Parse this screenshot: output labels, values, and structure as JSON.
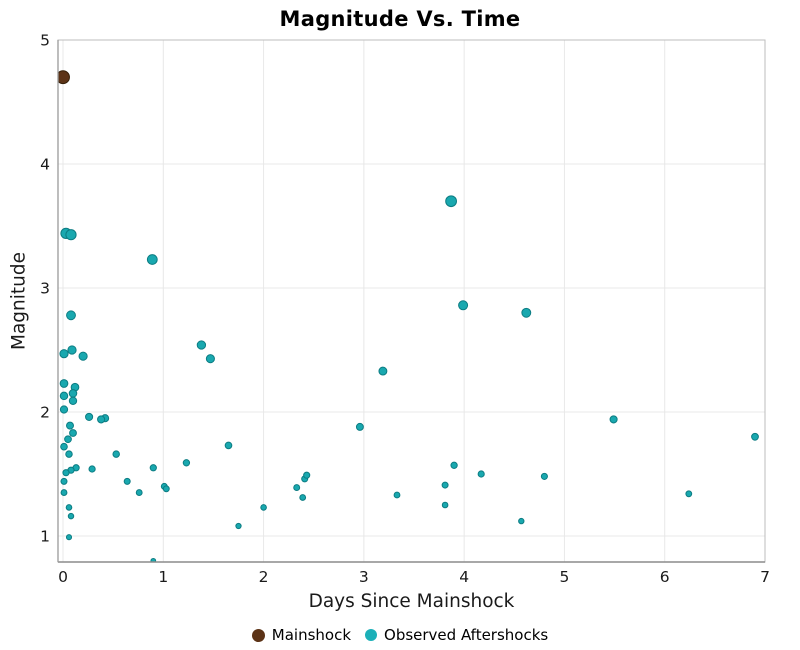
{
  "title": "Magnitude Vs. Time",
  "x_axis_label": "Days Since Mainshock",
  "y_axis_label": "Magnitude",
  "legend": {
    "items": [
      {
        "label": "Mainshock",
        "color": "#5C3317"
      },
      {
        "label": "Observed Aftershocks",
        "color": "#1CB0B8"
      }
    ]
  },
  "colors": {
    "mainshock_fill": "#5C3317",
    "mainshock_edge": "#35200A",
    "aftershock_fill": "#19A8AF",
    "aftershock_edge": "#0C7C82",
    "gridline": "#E8E8E8",
    "axis_border": "#BDBDBD",
    "axis_spine": "#8C8C8C",
    "text": "#1A1A1A"
  },
  "chart_data": {
    "type": "scatter",
    "title": "Magnitude Vs. Time",
    "xlabel": "Days Since Mainshock",
    "ylabel": "Magnitude",
    "x_range": [
      -0.05,
      7.0
    ],
    "y_range": [
      0.79,
      5.0
    ],
    "x_ticks": [
      0,
      1,
      2,
      3,
      4,
      5,
      6,
      7
    ],
    "y_ticks": [
      1,
      2,
      3,
      4,
      5
    ],
    "grid": true,
    "legend_position": "bottom",
    "marker_note": "marker size scales with magnitude",
    "series": [
      {
        "name": "Mainshock",
        "color": "#5C3317",
        "edge_color": "#35200A",
        "points": [
          [
            0.0,
            4.7
          ]
        ]
      },
      {
        "name": "Observed Aftershocks",
        "color": "#19A8AF",
        "edge_color": "#0C7C82",
        "points": [
          [
            0.03,
            3.44
          ],
          [
            0.08,
            3.43
          ],
          [
            0.89,
            3.23
          ],
          [
            0.08,
            2.78
          ],
          [
            0.01,
            2.47
          ],
          [
            0.09,
            2.5
          ],
          [
            0.2,
            2.45
          ],
          [
            1.38,
            2.54
          ],
          [
            1.47,
            2.43
          ],
          [
            3.19,
            2.33
          ],
          [
            0.01,
            2.23
          ],
          [
            0.12,
            2.2
          ],
          [
            0.1,
            2.15
          ],
          [
            0.01,
            2.13
          ],
          [
            0.1,
            2.09
          ],
          [
            0.01,
            2.02
          ],
          [
            0.26,
            1.96
          ],
          [
            0.42,
            1.95
          ],
          [
            0.38,
            1.94
          ],
          [
            0.07,
            1.89
          ],
          [
            0.1,
            1.83
          ],
          [
            0.05,
            1.78
          ],
          [
            0.01,
            1.72
          ],
          [
            0.06,
            1.66
          ],
          [
            0.53,
            1.66
          ],
          [
            0.13,
            1.55
          ],
          [
            0.08,
            1.53
          ],
          [
            0.03,
            1.51
          ],
          [
            0.29,
            1.54
          ],
          [
            0.9,
            1.55
          ],
          [
            1.23,
            1.59
          ],
          [
            0.01,
            1.44
          ],
          [
            0.64,
            1.44
          ],
          [
            1.01,
            1.4
          ],
          [
            1.03,
            1.38
          ],
          [
            0.01,
            1.35
          ],
          [
            0.76,
            1.35
          ],
          [
            0.06,
            1.23
          ],
          [
            0.08,
            1.16
          ],
          [
            0.06,
            0.99
          ],
          [
            0.9,
            0.8
          ],
          [
            1.65,
            1.73
          ],
          [
            1.75,
            1.08
          ],
          [
            2.0,
            1.23
          ],
          [
            2.33,
            1.39
          ],
          [
            2.39,
            1.31
          ],
          [
            2.41,
            1.46
          ],
          [
            2.43,
            1.49
          ],
          [
            2.96,
            1.88
          ],
          [
            3.33,
            1.33
          ],
          [
            3.87,
            3.7
          ],
          [
            3.81,
            1.41
          ],
          [
            3.81,
            1.25
          ],
          [
            3.9,
            1.57
          ],
          [
            3.99,
            2.86
          ],
          [
            4.17,
            1.5
          ],
          [
            4.62,
            2.8
          ],
          [
            4.57,
            1.12
          ],
          [
            4.8,
            1.48
          ],
          [
            5.49,
            1.94
          ],
          [
            6.24,
            1.34
          ],
          [
            6.9,
            1.8
          ]
        ]
      }
    ]
  }
}
